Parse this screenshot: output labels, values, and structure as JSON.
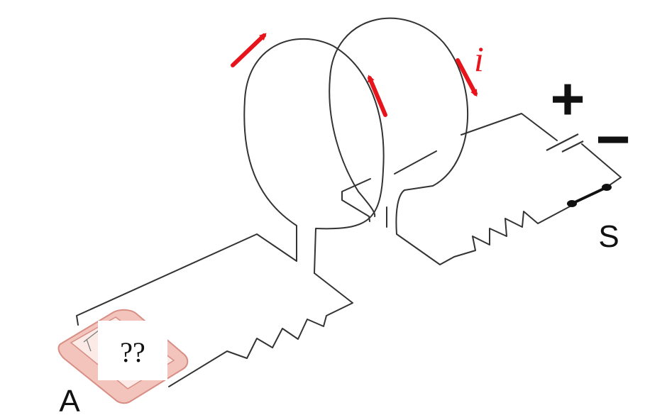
{
  "labels": {
    "ammeter": "A",
    "switch": "S",
    "current": "i",
    "plus": "+",
    "minus": "−",
    "ammeter_reading": "??"
  },
  "colors": {
    "wire": "#333333",
    "arrow": "#e8141c",
    "meter_body": "#f2c4bc",
    "meter_edge": "#d88e84"
  }
}
